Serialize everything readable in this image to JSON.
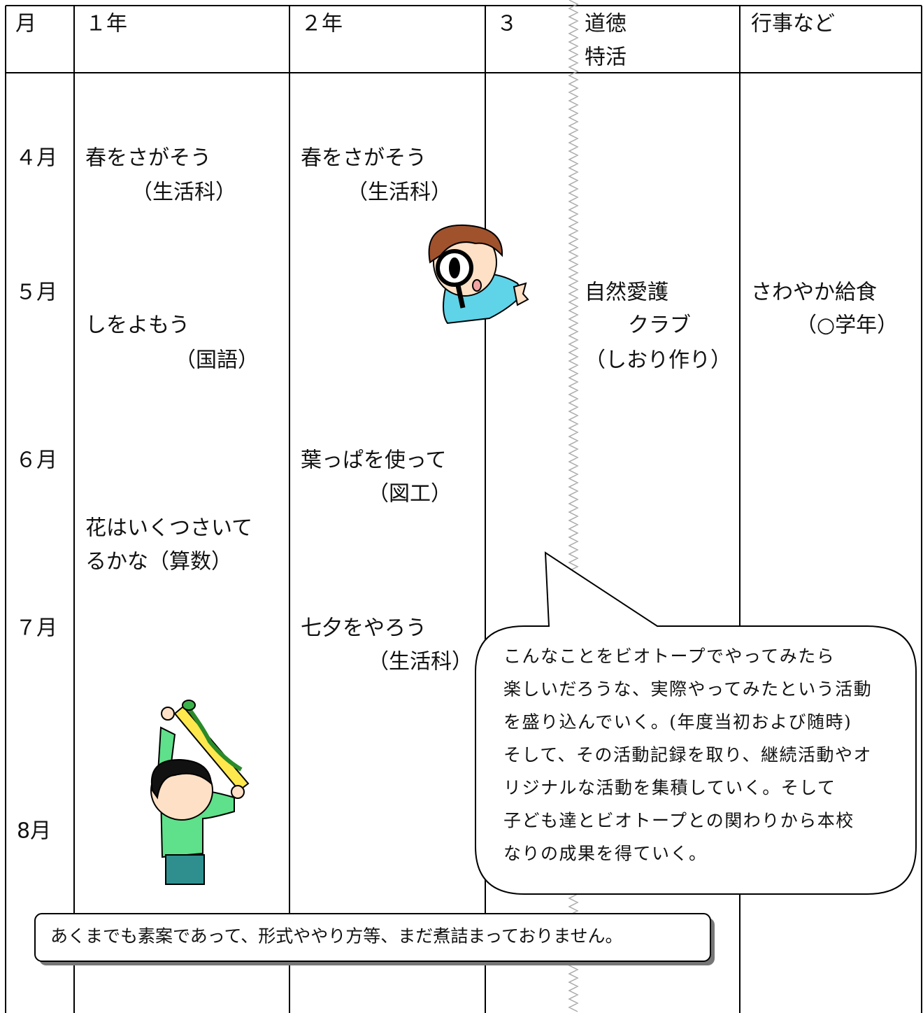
{
  "header": {
    "month": "月",
    "grade1": "１年",
    "grade2": "２年",
    "grade3": "３",
    "moral": [
      "道徳",
      "特活"
    ],
    "events": "行事など"
  },
  "months": [
    "４月",
    "５月",
    "６月",
    "７月",
    "8月"
  ],
  "grade1": [
    [
      "春をさがそう",
      "（生活科）"
    ],
    [
      "しをよもう",
      "（国語）"
    ],
    [
      "花はいくつさいて",
      "るかな（算数）"
    ]
  ],
  "grade2": [
    [
      "春をさがそう",
      "（生活科）"
    ],
    [
      "葉っぱを使って",
      "（図工）"
    ],
    [
      "七夕をやろう",
      "（生活科）"
    ]
  ],
  "moral": [
    [
      "自然愛護",
      "クラブ",
      "（しおり作り）"
    ]
  ],
  "events": [
    [
      "さわやか給食",
      "（○学年）"
    ]
  ],
  "callout": [
    "こんなことをビオトープでやってみたら",
    "楽しいだろうな、実際やってみたという活動",
    "を盛り込んでいく。(年度当初および随時)",
    "そして、その活動記録を取り、継続活動やオ",
    "リジナルな活動を集積していく。そして",
    "子ども達とビオトープとの関わりから本校",
    "なりの成果を得ていく。"
  ],
  "note": "あくまでも素案であって、形式ややり方等、まだ煮詰まっておりません。"
}
